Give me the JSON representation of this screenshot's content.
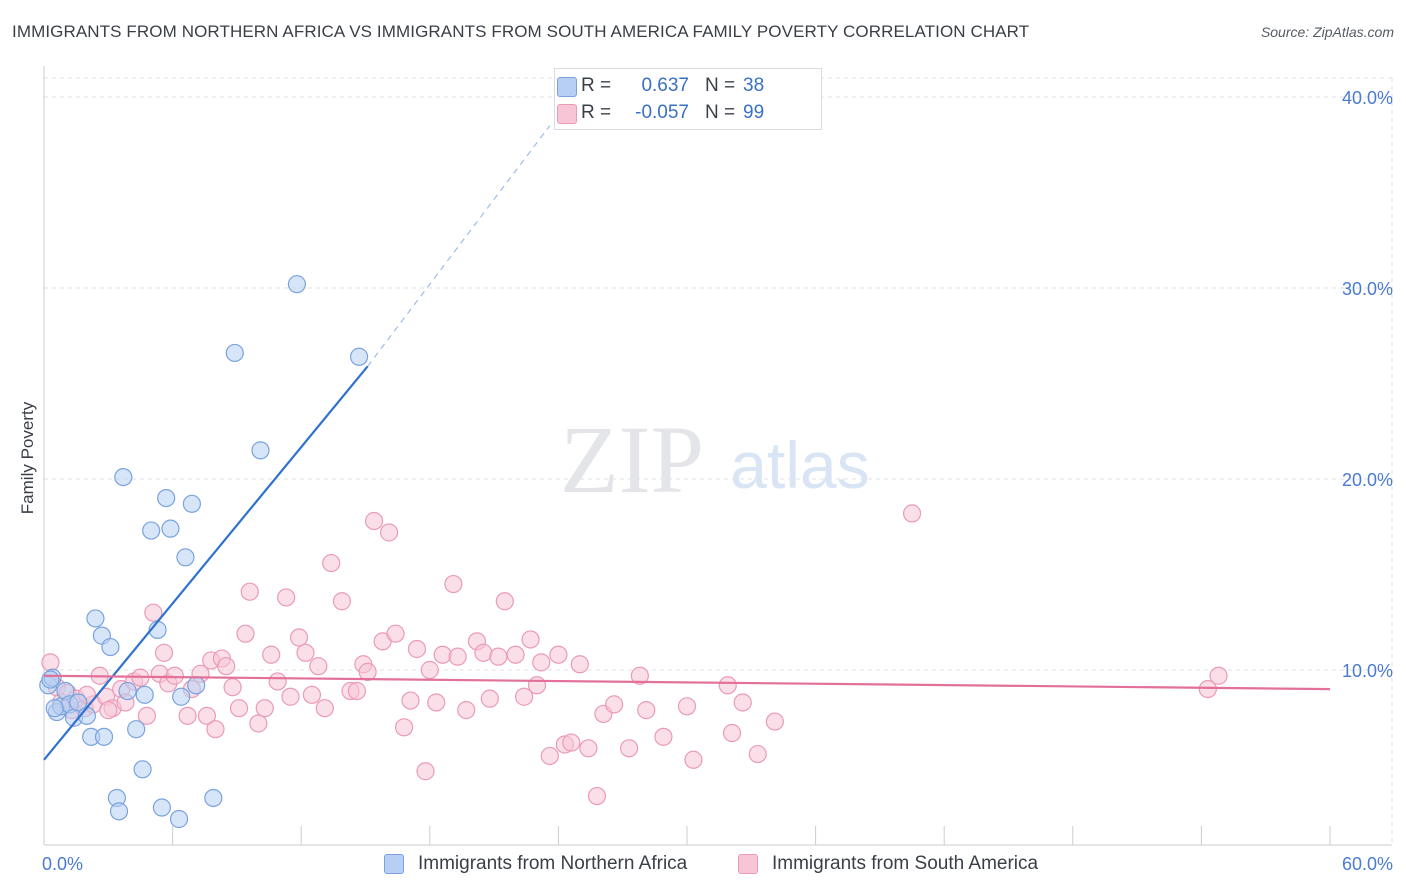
{
  "header": {
    "title": "IMMIGRANTS FROM NORTHERN AFRICA VS IMMIGRANTS FROM SOUTH AMERICA FAMILY POVERTY CORRELATION CHART",
    "source": "Source: ZipAtlas.com"
  },
  "watermark": {
    "zip": "ZIP",
    "atlas": "atlas"
  },
  "legend_top": {
    "r_label": "R =",
    "n_label": "N =",
    "rows": [
      {
        "r": "0.637",
        "n": "38"
      },
      {
        "r": "-0.057",
        "n": "99"
      }
    ]
  },
  "colors": {
    "blue_fill": "#b7cff2",
    "blue_stroke": "#7aa3de",
    "blue_line": "#2f72cf",
    "pink_fill": "#f7c5d5",
    "pink_stroke": "#ea9bb5",
    "pink_line": "#e2709a",
    "tick_label": "#4a7bd0",
    "grid": "#dde1e6"
  },
  "chart_data": {
    "type": "scatter",
    "title": "IMMIGRANTS FROM NORTHERN AFRICA VS IMMIGRANTS FROM SOUTH AMERICA FAMILY POVERTY CORRELATION CHART",
    "xlabel": "",
    "ylabel": "Family Poverty",
    "xlim": [
      0,
      60
    ],
    "ylim": [
      0,
      41
    ],
    "x_tick_labels": [
      "0.0%",
      "60.0%"
    ],
    "y_ticks": [
      {
        "value": 10,
        "label": "10.0%"
      },
      {
        "value": 20,
        "label": "20.0%"
      },
      {
        "value": 30,
        "label": "30.0%"
      },
      {
        "value": 40,
        "label": "40.0%"
      }
    ],
    "grid": true,
    "legend_position": "bottom",
    "series": [
      {
        "name": "Immigrants from Northern Africa",
        "color": "#b7cff2",
        "trend": {
          "x0": 0,
          "y0": 5.3,
          "x1": 15.1,
          "y1": 25.9,
          "dashed_to_x": 23.6,
          "dashed_to_y": 38.5
        },
        "points": [
          [
            0.2,
            9.2
          ],
          [
            0.4,
            9.6
          ],
          [
            0.6,
            7.8
          ],
          [
            0.8,
            8.1
          ],
          [
            1.0,
            8.9
          ],
          [
            1.2,
            8.2
          ],
          [
            1.4,
            7.5
          ],
          [
            1.6,
            8.3
          ],
          [
            2.0,
            7.6
          ],
          [
            2.2,
            6.5
          ],
          [
            2.4,
            12.7
          ],
          [
            2.7,
            11.8
          ],
          [
            2.8,
            6.5
          ],
          [
            3.1,
            11.2
          ],
          [
            3.4,
            3.3
          ],
          [
            3.5,
            2.6
          ],
          [
            3.7,
            20.1
          ],
          [
            3.9,
            8.9
          ],
          [
            4.3,
            6.9
          ],
          [
            4.6,
            4.8
          ],
          [
            4.7,
            8.7
          ],
          [
            5.0,
            17.3
          ],
          [
            5.3,
            12.1
          ],
          [
            5.5,
            2.8
          ],
          [
            5.7,
            19.0
          ],
          [
            5.9,
            17.4
          ],
          [
            6.3,
            2.2
          ],
          [
            6.4,
            8.6
          ],
          [
            6.6,
            15.9
          ],
          [
            6.9,
            18.7
          ],
          [
            7.1,
            9.2
          ],
          [
            7.9,
            3.3
          ],
          [
            8.9,
            26.6
          ],
          [
            10.1,
            21.5
          ],
          [
            11.8,
            30.2
          ],
          [
            14.7,
            26.4
          ],
          [
            0.3,
            9.5
          ],
          [
            0.5,
            8.0
          ]
        ]
      },
      {
        "name": "Immigrants from South America",
        "color": "#f7c5d5",
        "trend": {
          "x0": 0,
          "y0": 9.7,
          "x1": 60,
          "y1": 9.0
        },
        "points": [
          [
            0.3,
            10.4
          ],
          [
            0.6,
            9.1
          ],
          [
            0.8,
            8.3
          ],
          [
            1.1,
            8.8
          ],
          [
            1.3,
            7.9
          ],
          [
            1.5,
            8.5
          ],
          [
            1.9,
            8.0
          ],
          [
            2.3,
            8.2
          ],
          [
            2.6,
            9.7
          ],
          [
            2.9,
            8.6
          ],
          [
            3.2,
            8.0
          ],
          [
            3.6,
            9.0
          ],
          [
            3.8,
            8.3
          ],
          [
            4.2,
            9.4
          ],
          [
            4.5,
            9.6
          ],
          [
            4.8,
            7.6
          ],
          [
            5.1,
            13.0
          ],
          [
            5.4,
            9.8
          ],
          [
            5.6,
            10.9
          ],
          [
            5.8,
            9.3
          ],
          [
            6.1,
            9.7
          ],
          [
            6.7,
            7.6
          ],
          [
            6.9,
            9.0
          ],
          [
            7.3,
            9.8
          ],
          [
            7.6,
            7.6
          ],
          [
            7.8,
            10.5
          ],
          [
            8.0,
            6.9
          ],
          [
            8.3,
            10.6
          ],
          [
            8.5,
            10.2
          ],
          [
            8.8,
            9.1
          ],
          [
            9.1,
            8.0
          ],
          [
            9.4,
            11.9
          ],
          [
            9.6,
            14.1
          ],
          [
            10.0,
            7.2
          ],
          [
            10.3,
            8.0
          ],
          [
            10.6,
            10.8
          ],
          [
            10.9,
            9.4
          ],
          [
            11.3,
            13.8
          ],
          [
            11.5,
            8.6
          ],
          [
            11.9,
            11.7
          ],
          [
            12.2,
            10.9
          ],
          [
            12.5,
            8.7
          ],
          [
            12.8,
            10.2
          ],
          [
            13.1,
            8.0
          ],
          [
            13.4,
            15.6
          ],
          [
            13.9,
            13.6
          ],
          [
            14.3,
            8.9
          ],
          [
            14.6,
            8.9
          ],
          [
            14.9,
            10.3
          ],
          [
            15.1,
            9.9
          ],
          [
            15.4,
            17.8
          ],
          [
            15.8,
            11.5
          ],
          [
            16.1,
            17.2
          ],
          [
            16.4,
            11.9
          ],
          [
            16.8,
            7.0
          ],
          [
            17.1,
            8.4
          ],
          [
            17.4,
            11.1
          ],
          [
            17.8,
            4.7
          ],
          [
            18.0,
            10.0
          ],
          [
            18.3,
            8.3
          ],
          [
            18.6,
            10.8
          ],
          [
            19.1,
            14.5
          ],
          [
            19.3,
            10.7
          ],
          [
            19.7,
            7.9
          ],
          [
            20.2,
            11.5
          ],
          [
            20.5,
            10.9
          ],
          [
            20.8,
            8.5
          ],
          [
            21.2,
            10.7
          ],
          [
            21.5,
            13.6
          ],
          [
            22.0,
            10.8
          ],
          [
            22.4,
            8.6
          ],
          [
            22.7,
            11.6
          ],
          [
            23.0,
            9.2
          ],
          [
            23.2,
            10.4
          ],
          [
            23.6,
            5.5
          ],
          [
            24.0,
            10.8
          ],
          [
            24.3,
            6.1
          ],
          [
            24.6,
            6.2
          ],
          [
            25.0,
            10.3
          ],
          [
            25.4,
            5.9
          ],
          [
            25.8,
            3.4
          ],
          [
            26.1,
            7.7
          ],
          [
            26.6,
            8.2
          ],
          [
            27.3,
            5.9
          ],
          [
            27.8,
            9.7
          ],
          [
            28.1,
            7.9
          ],
          [
            28.9,
            6.5
          ],
          [
            30.0,
            8.1
          ],
          [
            30.3,
            5.3
          ],
          [
            31.9,
            9.2
          ],
          [
            32.1,
            6.7
          ],
          [
            32.6,
            8.3
          ],
          [
            33.3,
            5.6
          ],
          [
            34.1,
            7.3
          ],
          [
            40.5,
            18.2
          ],
          [
            54.3,
            9.0
          ],
          [
            54.8,
            9.7
          ],
          [
            2.0,
            8.7
          ],
          [
            3.0,
            7.9
          ]
        ]
      }
    ]
  },
  "legend_bottom": {
    "items": [
      {
        "label": "Immigrants from Northern Africa"
      },
      {
        "label": "Immigrants from South America"
      }
    ]
  }
}
